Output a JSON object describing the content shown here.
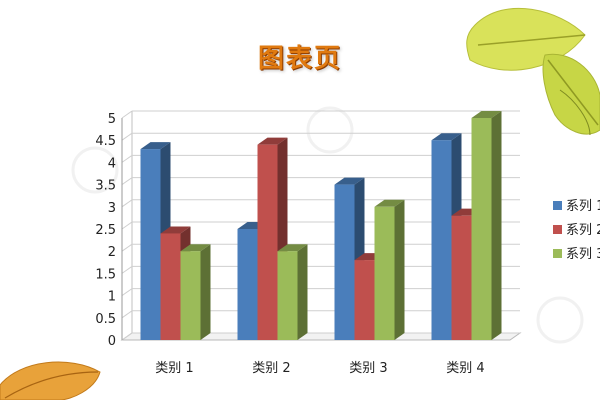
{
  "page": {
    "title": "图表页"
  },
  "decor": {
    "leaf_top_right": "yellow-leaves-decoration",
    "leaf_bottom_left": "orange-leaf-decoration",
    "watermark": "watermark-logo"
  },
  "chart_data": {
    "type": "bar",
    "style": "3d-clustered-column",
    "title": "",
    "xlabel": "",
    "ylabel": "",
    "categories": [
      "类别 1",
      "类别 2",
      "类别 3",
      "类别 4"
    ],
    "series": [
      {
        "name": "系列 1",
        "values": [
          4.3,
          2.5,
          3.5,
          4.5
        ],
        "color": "#4a7ebb"
      },
      {
        "name": "系列 2",
        "values": [
          2.4,
          4.4,
          1.8,
          2.8
        ],
        "color": "#c0504d"
      },
      {
        "name": "系列 3",
        "values": [
          2.0,
          2.0,
          3.0,
          5.0
        ],
        "color": "#9bbb59"
      }
    ],
    "ylim": [
      0,
      5
    ],
    "yticks": [
      "0",
      "0.5",
      "1",
      "1.5",
      "2",
      "2.5",
      "3",
      "3.5",
      "4",
      "4.5",
      "5"
    ],
    "grid": true,
    "legend_position": "right"
  }
}
